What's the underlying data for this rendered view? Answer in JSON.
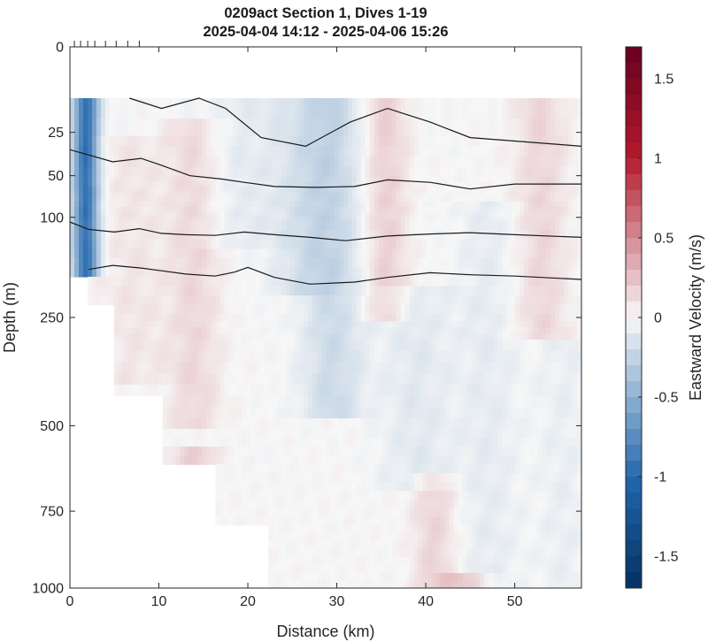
{
  "chart_data": {
    "type": "heatmap",
    "title": "0209act Section 1, Dives 1-19",
    "subtitle": "2025-04-04 14:12 - 2025-04-06 15:26",
    "xlabel": "Distance (km)",
    "ylabel": "Depth (m)",
    "colorbar_label": "Eastward Velocity (m/s)",
    "xlim": [
      0,
      57.5
    ],
    "x_ticks": [
      0,
      10,
      20,
      30,
      40,
      50
    ],
    "y_scale": "sqrt-like (nonlinear)",
    "y_ticks": [
      0,
      25,
      50,
      100,
      250,
      500,
      750,
      1000
    ],
    "y_tick_labels": [
      "0",
      "25",
      "50",
      "100",
      "250",
      "500",
      "750",
      "1000"
    ],
    "clim": [
      -1.7,
      1.7
    ],
    "colorbar_ticks": [
      -1.5,
      -1,
      -0.5,
      0,
      0.5,
      1,
      1.5
    ],
    "colorbar_tick_labels": [
      "-1.5",
      "-1",
      "-0.5",
      "0",
      "0.5",
      "1",
      "1.5"
    ],
    "colormap": "diverging blue-white-red",
    "colors": {
      "negative": "#2166ac",
      "zero": "#f7f7f7",
      "positive": "#b2182b"
    },
    "dive_markers_km": [
      0.5,
      1.2,
      2.0,
      2.8,
      4.0,
      5.2,
      6.5,
      7.8
    ],
    "data_top_depth_m": 15,
    "bottom_mask": [
      {
        "x": [
          0,
          2.1
        ],
        "max_depth": 190
      },
      {
        "x": [
          2.1,
          4.8
        ],
        "max_depth": 230
      },
      {
        "x": [
          4.8,
          10.3
        ],
        "max_depth": 430
      },
      {
        "x": [
          10.3,
          16.3
        ],
        "max_depth": 600
      },
      {
        "x": [
          16.3,
          22.5
        ],
        "max_depth": 800
      },
      {
        "x": [
          22.5,
          57.5
        ],
        "max_depth": 1000
      }
    ],
    "velocity_columns": [
      {
        "x": 1.8,
        "v": -0.95,
        "z0": 15,
        "z1": 190,
        "w": 1.4
      },
      {
        "x": 7,
        "v": 0.08,
        "z0": 30,
        "z1": 400,
        "w": 4
      },
      {
        "x": 14,
        "v": 0.14,
        "z0": 20,
        "z1": 500,
        "w": 3
      },
      {
        "x": 19,
        "v": -0.08,
        "z0": 15,
        "z1": 150,
        "w": 4
      },
      {
        "x": 26,
        "v": -0.12,
        "z0": 15,
        "z1": 220,
        "w": 4
      },
      {
        "x": 29.5,
        "v": -0.2,
        "z0": 15,
        "z1": 480,
        "w": 3.5
      },
      {
        "x": 35.5,
        "v": 0.18,
        "z0": 15,
        "z1": 260,
        "w": 2.5
      },
      {
        "x": 39,
        "v": -0.1,
        "z0": 200,
        "z1": 700,
        "w": 4
      },
      {
        "x": 41,
        "v": 0.16,
        "z0": 650,
        "z1": 1000,
        "w": 2.5
      },
      {
        "x": 47,
        "v": -0.08,
        "z0": 80,
        "z1": 1000,
        "w": 3.5
      },
      {
        "x": 53,
        "v": 0.15,
        "z0": 15,
        "z1": 300,
        "w": 3
      },
      {
        "x": 55.5,
        "v": -0.06,
        "z0": 300,
        "z1": 1000,
        "w": 3
      },
      {
        "x": 14,
        "v": 0.2,
        "z0": 560,
        "z1": 620,
        "w": 2.5
      },
      {
        "x": 44.5,
        "v": 0.22,
        "z0": 960,
        "z1": 1000,
        "w": 3
      }
    ],
    "contours": [
      {
        "x": [
          6.7,
          10.3,
          14.5,
          17.5,
          21.5,
          26.5,
          31.5,
          35.7,
          40.5,
          45,
          50,
          55,
          57.5
        ],
        "depth": [
          15,
          18,
          15,
          18,
          28,
          33,
          22,
          18,
          22,
          28,
          30,
          32,
          33
        ]
      },
      {
        "x": [
          0,
          2.1,
          4.8,
          8,
          10.3,
          13.5,
          17,
          19.6,
          23,
          27.5,
          32,
          35.7,
          40.5,
          45,
          50,
          57.5
        ],
        "depth": [
          35,
          38,
          42,
          40,
          44,
          50,
          54,
          58,
          63,
          64,
          63,
          55,
          58,
          66,
          60,
          60
        ]
      },
      {
        "x": [
          0,
          2.1,
          5,
          7.8,
          10.3,
          13,
          16.3,
          19.6,
          23,
          27,
          31,
          35.7,
          40.5,
          45,
          50,
          57.5
        ],
        "depth": [
          107,
          118,
          122,
          117,
          124,
          126,
          127,
          122,
          126,
          130,
          135,
          128,
          125,
          123,
          126,
          130
        ]
      },
      {
        "x": [
          2.1,
          4.8,
          8,
          10.3,
          13,
          16.3,
          18.5,
          20,
          23,
          27,
          32,
          35.7,
          40.5,
          45,
          50,
          57.5
        ],
        "depth": [
          178,
          172,
          176,
          180,
          185,
          188,
          182,
          175,
          190,
          200,
          197,
          190,
          183,
          186,
          188,
          193
        ]
      }
    ]
  }
}
